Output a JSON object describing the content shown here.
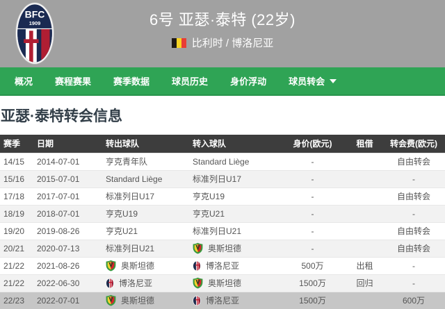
{
  "header": {
    "title": "6号 亚瑟·泰特 (22岁)",
    "nationality_club": "比利时 / 博洛尼亚",
    "crest_text": "BFC",
    "crest_year": "1909",
    "flag_icon": "belgium-flag"
  },
  "nav": {
    "tabs": [
      {
        "label": "概况",
        "has_dropdown": false
      },
      {
        "label": "赛程赛果",
        "has_dropdown": false
      },
      {
        "label": "赛季数据",
        "has_dropdown": false
      },
      {
        "label": "球员历史",
        "has_dropdown": false
      },
      {
        "label": "身价浮动",
        "has_dropdown": false
      },
      {
        "label": "球员转会",
        "has_dropdown": true
      }
    ]
  },
  "section": {
    "title": "亚瑟·泰特转会信息"
  },
  "table": {
    "columns": [
      "赛季",
      "日期",
      "转出球队",
      "转入球队",
      "身价(欧元)",
      "租借",
      "转会费(欧元)"
    ],
    "rows": [
      {
        "season": "14/15",
        "date": "2014-07-01",
        "from": {
          "name": "亨克青年队",
          "badge": null
        },
        "to": {
          "name": "Standard Liège",
          "badge": null
        },
        "value": "-",
        "loan": "",
        "fee": "自由转会",
        "highlight": false
      },
      {
        "season": "15/16",
        "date": "2015-07-01",
        "from": {
          "name": "Standard Liège",
          "badge": null
        },
        "to": {
          "name": "标准列日U17",
          "badge": null
        },
        "value": "-",
        "loan": "",
        "fee": "-",
        "highlight": false
      },
      {
        "season": "17/18",
        "date": "2017-07-01",
        "from": {
          "name": "标准列日U17",
          "badge": null
        },
        "to": {
          "name": "亨克U19",
          "badge": null
        },
        "value": "-",
        "loan": "",
        "fee": "自由转会",
        "highlight": false
      },
      {
        "season": "18/19",
        "date": "2018-07-01",
        "from": {
          "name": "亨克U19",
          "badge": null
        },
        "to": {
          "name": "亨克U21",
          "badge": null
        },
        "value": "-",
        "loan": "",
        "fee": "-",
        "highlight": false
      },
      {
        "season": "19/20",
        "date": "2019-08-26",
        "from": {
          "name": "亨克U21",
          "badge": null
        },
        "to": {
          "name": "标准列日U21",
          "badge": null
        },
        "value": "-",
        "loan": "",
        "fee": "自由转会",
        "highlight": false
      },
      {
        "season": "20/21",
        "date": "2020-07-13",
        "from": {
          "name": "标准列日U21",
          "badge": null
        },
        "to": {
          "name": "奥斯坦德",
          "badge": "oostende-badge"
        },
        "value": "-",
        "loan": "",
        "fee": "自由转会",
        "highlight": false
      },
      {
        "season": "21/22",
        "date": "2021-08-26",
        "from": {
          "name": "奥斯坦德",
          "badge": "oostende-badge"
        },
        "to": {
          "name": "博洛尼亚",
          "badge": "bologna-badge"
        },
        "value": "500万",
        "loan": "出租",
        "fee": "-",
        "highlight": false
      },
      {
        "season": "21/22",
        "date": "2022-06-30",
        "from": {
          "name": "博洛尼亚",
          "badge": "bologna-badge"
        },
        "to": {
          "name": "奥斯坦德",
          "badge": "oostende-badge"
        },
        "value": "1500万",
        "loan": "回归",
        "fee": "-",
        "highlight": false
      },
      {
        "season": "22/23",
        "date": "2022-07-01",
        "from": {
          "name": "奥斯坦德",
          "badge": "oostende-badge"
        },
        "to": {
          "name": "博洛尼亚",
          "badge": "bologna-badge"
        },
        "value": "1500万",
        "loan": "",
        "fee": "600万",
        "highlight": true
      }
    ]
  },
  "colors": {
    "header_gray": "#a1a1a1",
    "nav_green": "#2fa455",
    "table_header_bg": "#3d3d3d",
    "row_alt": "#f2f2f2",
    "row_highlight": "#c6c6c6",
    "flag_black": "#1f1a17",
    "flag_yellow": "#f8d423",
    "flag_red": "#e83d35"
  }
}
